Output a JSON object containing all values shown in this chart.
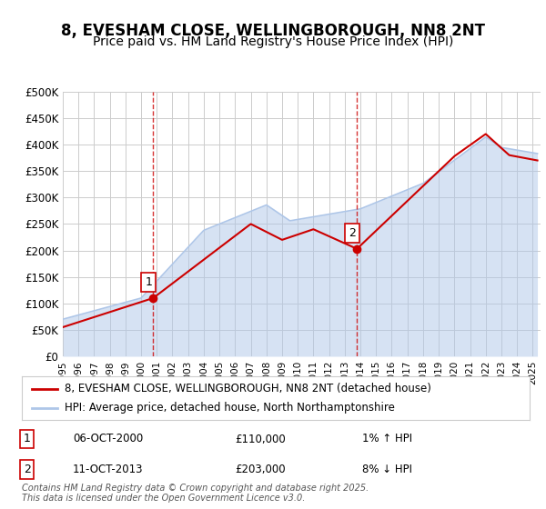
{
  "title1": "8, EVESHAM CLOSE, WELLINGBOROUGH, NN8 2NT",
  "title2": "Price paid vs. HM Land Registry's House Price Index (HPI)",
  "ylabel": "",
  "ylim": [
    0,
    500000
  ],
  "yticks": [
    0,
    50000,
    100000,
    150000,
    200000,
    250000,
    300000,
    350000,
    400000,
    450000,
    500000
  ],
  "ytick_labels": [
    "£0",
    "£50K",
    "£100K",
    "£150K",
    "£200K",
    "£250K",
    "£300K",
    "£350K",
    "£400K",
    "£450K",
    "£500K"
  ],
  "xlim_start": 1995.0,
  "xlim_end": 2025.5,
  "hpi_color": "#aec6e8",
  "price_color": "#cc0000",
  "vline_color": "#cc0000",
  "grid_color": "#cccccc",
  "background_color": "#ffffff",
  "legend_price": "8, EVESHAM CLOSE, WELLINGBOROUGH, NN8 2NT (detached house)",
  "legend_hpi": "HPI: Average price, detached house, North Northamptonshire",
  "sale1_label": "1",
  "sale1_date": "06-OCT-2000",
  "sale1_price": "£110,000",
  "sale1_hpi": "1% ↑ HPI",
  "sale1_year": 2000.77,
  "sale1_value": 110000,
  "sale2_label": "2",
  "sale2_date": "11-OCT-2013",
  "sale2_price": "£203,000",
  "sale2_hpi": "8% ↓ HPI",
  "sale2_year": 2013.78,
  "sale2_value": 203000,
  "footer": "Contains HM Land Registry data © Crown copyright and database right 2025.\nThis data is licensed under the Open Government Licence v3.0.",
  "title_fontsize": 12,
  "subtitle_fontsize": 10,
  "tick_fontsize": 8.5,
  "legend_fontsize": 8.5,
  "annotation_fontsize": 8.5,
  "footer_fontsize": 7
}
